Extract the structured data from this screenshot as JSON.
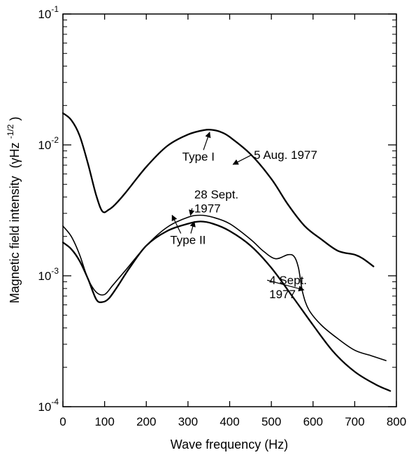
{
  "chart_data": {
    "type": "line",
    "xlabel": "Wave frequency (Hz)",
    "ylabel_main": "Magnetic field intensity",
    "ylabel_unit": "(γHz",
    "ylabel_exp": "-1/2",
    "ylabel_close": ")",
    "xlim": [
      0,
      800
    ],
    "ylim": [
      0.0001,
      0.1
    ],
    "yscale": "log",
    "grid": false,
    "x_ticks": [
      {
        "value": 0,
        "label": "0"
      },
      {
        "value": 100,
        "label": "100"
      },
      {
        "value": 200,
        "label": "200"
      },
      {
        "value": 300,
        "label": "300"
      },
      {
        "value": 400,
        "label": "400"
      },
      {
        "value": 500,
        "label": "500"
      },
      {
        "value": 600,
        "label": "600"
      },
      {
        "value": 700,
        "label": "700"
      },
      {
        "value": 800,
        "label": "800"
      }
    ],
    "y_ticks": [
      {
        "value": 0.1,
        "base": "10",
        "exp": "-1"
      },
      {
        "value": 0.01,
        "base": "10",
        "exp": "-2"
      },
      {
        "value": 0.001,
        "base": "10",
        "exp": "-3"
      },
      {
        "value": 0.0001,
        "base": "10",
        "exp": "-4"
      }
    ],
    "series": [
      {
        "x": [
          0,
          20,
          40,
          60,
          80,
          95,
          110,
          125,
          150,
          200,
          250,
          300,
          340,
          360,
          380,
          400,
          450,
          500,
          540,
          580,
          620,
          660,
          700,
          720,
          745
        ],
        "y": [
          0.0175,
          0.0155,
          0.0118,
          0.0072,
          0.0041,
          0.0031,
          0.0032,
          0.0035,
          0.0043,
          0.0068,
          0.0098,
          0.012,
          0.013,
          0.013,
          0.0125,
          0.0115,
          0.0085,
          0.0055,
          0.0035,
          0.0024,
          0.0019,
          0.00155,
          0.00145,
          0.00135,
          0.00118
        ]
      },
      {
        "x": [
          0,
          20,
          40,
          60,
          80,
          100,
          120,
          150,
          200,
          250,
          300,
          330,
          360,
          400,
          450,
          480,
          510,
          540,
          555,
          565,
          575,
          590,
          620,
          660,
          700,
          740,
          775
        ],
        "y": [
          0.0024,
          0.002,
          0.00145,
          0.00095,
          0.00075,
          0.00072,
          0.00085,
          0.0011,
          0.0017,
          0.00235,
          0.0028,
          0.0029,
          0.0028,
          0.0025,
          0.0019,
          0.00155,
          0.00135,
          0.00145,
          0.0014,
          0.00115,
          0.00075,
          0.00055,
          0.00042,
          0.00033,
          0.00027,
          0.000245,
          0.000225
        ]
      },
      {
        "x": [
          0,
          20,
          40,
          60,
          80,
          95,
          110,
          130,
          160,
          200,
          250,
          300,
          330,
          360,
          400,
          450,
          500,
          550,
          600,
          650,
          700,
          750,
          785
        ],
        "y": [
          0.0018,
          0.0016,
          0.0013,
          0.00095,
          0.00066,
          0.00063,
          0.00067,
          0.00082,
          0.00115,
          0.0017,
          0.0022,
          0.0025,
          0.0026,
          0.0025,
          0.0022,
          0.0017,
          0.00115,
          0.0007,
          0.00042,
          0.00026,
          0.000185,
          0.000148,
          0.000132
        ]
      }
    ],
    "annotations": [
      {
        "lines": [
          "Type I"
        ],
        "x": 325,
        "y": 0.0076,
        "anchor": "middle",
        "arrows": [
          {
            "tx": 352,
            "ty": 0.0125
          }
        ]
      },
      {
        "lines": [
          "5 Aug. 1977"
        ],
        "x": 458,
        "y": 0.0078,
        "anchor": "start",
        "arrows": [
          {
            "tx": 408,
            "ty": 0.0071
          }
        ]
      },
      {
        "lines": [
          "28 Sept.",
          "1977"
        ],
        "x": 315,
        "y": 0.0039,
        "anchor": "start",
        "arrows": [
          {
            "tx": 306,
            "ty": 0.0029
          }
        ]
      },
      {
        "lines": [
          "Type II"
        ],
        "x": 300,
        "y": 0.00175,
        "anchor": "middle",
        "arrows": [
          {
            "tx": 262,
            "ty": 0.0029
          },
          {
            "tx": 315,
            "ty": 0.0026
          }
        ]
      },
      {
        "lines": [
          "4 Sept.",
          "1977"
        ],
        "x": 495,
        "y": 0.00086,
        "anchor": "start",
        "arrows": [
          {
            "tx": 578,
            "ty": 0.00078
          }
        ]
      }
    ]
  }
}
